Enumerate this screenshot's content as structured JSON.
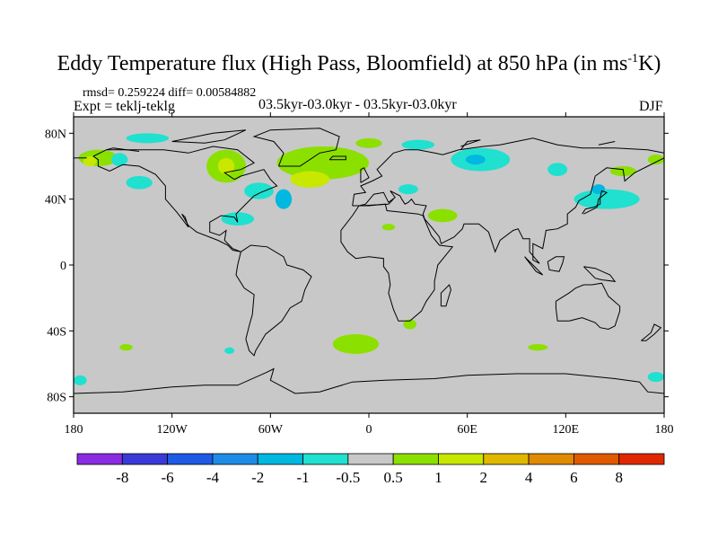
{
  "title": {
    "prefix": "Eddy Temperature flux (High Pass, Bloomfield) at 850 hPa (in ms",
    "sup": "-1",
    "suffix": "K)"
  },
  "stats_text": "rmsd= 0.259224 diff= 0.00584882",
  "expt_text": "Expt = teklj-teklg",
  "period_text": "03.5kyr-03.0kyr - 03.5kyr-03.0kyr",
  "season_text": "DJF",
  "map": {
    "projection": "cylindrical-equidistant",
    "lon_range": [
      -180,
      180
    ],
    "lat_range": [
      -90,
      90
    ],
    "ocean_land_fill": "#c8c8c8",
    "lon_ticks": [
      {
        "value": -180,
        "label": "180"
      },
      {
        "value": -120,
        "label": "120W"
      },
      {
        "value": -60,
        "label": "60W"
      },
      {
        "value": 0,
        "label": "0"
      },
      {
        "value": 60,
        "label": "60E"
      },
      {
        "value": 120,
        "label": "120E"
      },
      {
        "value": 180,
        "label": "180"
      }
    ],
    "lat_ticks": [
      {
        "value": 80,
        "label": "80N"
      },
      {
        "value": 40,
        "label": "40N"
      },
      {
        "value": 0,
        "label": "0"
      },
      {
        "value": -40,
        "label": "40S"
      },
      {
        "value": -80,
        "label": "80S"
      }
    ],
    "anomalies": [
      {
        "lon": -135,
        "lat": 77,
        "rlon": 13,
        "rlat": 3,
        "color": "#20e0d0"
      },
      {
        "lon": -165,
        "lat": 65,
        "rlon": 12,
        "rlat": 5,
        "color": "#8ce000"
      },
      {
        "lon": -170,
        "lat": 63,
        "rlon": 4,
        "rlat": 3,
        "color": "#c8e800"
      },
      {
        "lon": -152,
        "lat": 64,
        "rlon": 5,
        "rlat": 4,
        "color": "#20e0d0"
      },
      {
        "lon": -140,
        "lat": 50,
        "rlon": 8,
        "rlat": 4,
        "color": "#20e0d0"
      },
      {
        "lon": -87,
        "lat": 60,
        "rlon": 12,
        "rlat": 10,
        "color": "#8ce000"
      },
      {
        "lon": -87,
        "lat": 60,
        "rlon": 5,
        "rlat": 5,
        "color": "#c8e800"
      },
      {
        "lon": -67,
        "lat": 45,
        "rlon": 9,
        "rlat": 5,
        "color": "#20e0d0"
      },
      {
        "lon": -52,
        "lat": 40,
        "rlon": 5,
        "rlat": 6,
        "color": "#00b8e0"
      },
      {
        "lon": -80,
        "lat": 28,
        "rlon": 10,
        "rlat": 4,
        "color": "#20e0d0"
      },
      {
        "lon": -28,
        "lat": 62,
        "rlon": 28,
        "rlat": 10,
        "color": "#8ce000"
      },
      {
        "lon": -36,
        "lat": 52,
        "rlon": 12,
        "rlat": 5,
        "color": "#c8e800"
      },
      {
        "lon": 0,
        "lat": 74,
        "rlon": 8,
        "rlat": 3,
        "color": "#8ce000"
      },
      {
        "lon": 24,
        "lat": 46,
        "rlon": 6,
        "rlat": 3,
        "color": "#20e0d0"
      },
      {
        "lon": 45,
        "lat": 30,
        "rlon": 9,
        "rlat": 4,
        "color": "#8ce000"
      },
      {
        "lon": 12,
        "lat": 23,
        "rlon": 4,
        "rlat": 2,
        "color": "#8ce000"
      },
      {
        "lon": 30,
        "lat": 73,
        "rlon": 10,
        "rlat": 3,
        "color": "#20e0d0"
      },
      {
        "lon": 68,
        "lat": 64,
        "rlon": 18,
        "rlat": 7,
        "color": "#20e0d0"
      },
      {
        "lon": 65,
        "lat": 64,
        "rlon": 6,
        "rlat": 3,
        "color": "#00b8e0"
      },
      {
        "lon": 115,
        "lat": 58,
        "rlon": 6,
        "rlat": 4,
        "color": "#20e0d0"
      },
      {
        "lon": 145,
        "lat": 40,
        "rlon": 20,
        "rlat": 6,
        "color": "#20e0d0"
      },
      {
        "lon": 140,
        "lat": 46,
        "rlon": 4,
        "rlat": 3,
        "color": "#00b8e0"
      },
      {
        "lon": 155,
        "lat": 57,
        "rlon": 8,
        "rlat": 3,
        "color": "#8ce000"
      },
      {
        "lon": 175,
        "lat": 64,
        "rlon": 5,
        "rlat": 3,
        "color": "#8ce000"
      },
      {
        "lon": -8,
        "lat": -48,
        "rlon": 14,
        "rlat": 6,
        "color": "#8ce000"
      },
      {
        "lon": 25,
        "lat": -36,
        "rlon": 4,
        "rlat": 3,
        "color": "#8ce000"
      },
      {
        "lon": -148,
        "lat": -50,
        "rlon": 4,
        "rlat": 2,
        "color": "#8ce000"
      },
      {
        "lon": -85,
        "lat": -52,
        "rlon": 3,
        "rlat": 2,
        "color": "#20e0d0"
      },
      {
        "lon": -176,
        "lat": -70,
        "rlon": 4,
        "rlat": 3,
        "color": "#20e0d0"
      },
      {
        "lon": 175,
        "lat": -68,
        "rlon": 5,
        "rlat": 3,
        "color": "#20e0d0"
      },
      {
        "lon": 103,
        "lat": -50,
        "rlon": 6,
        "rlat": 2,
        "color": "#8ce000"
      }
    ]
  },
  "colorbar": {
    "colors": [
      "#8a2be2",
      "#3a3ad8",
      "#1e5ae6",
      "#1e8ce6",
      "#00b8e0",
      "#20e0d0",
      "#c8c8c8",
      "#8ce000",
      "#c8e800",
      "#e0b800",
      "#e08a00",
      "#e05a00",
      "#e02800"
    ],
    "labels": [
      "-8",
      "-6",
      "-4",
      "-2",
      "-1",
      "-0.5",
      "0.5",
      "1",
      "2",
      "4",
      "6",
      "8"
    ]
  }
}
